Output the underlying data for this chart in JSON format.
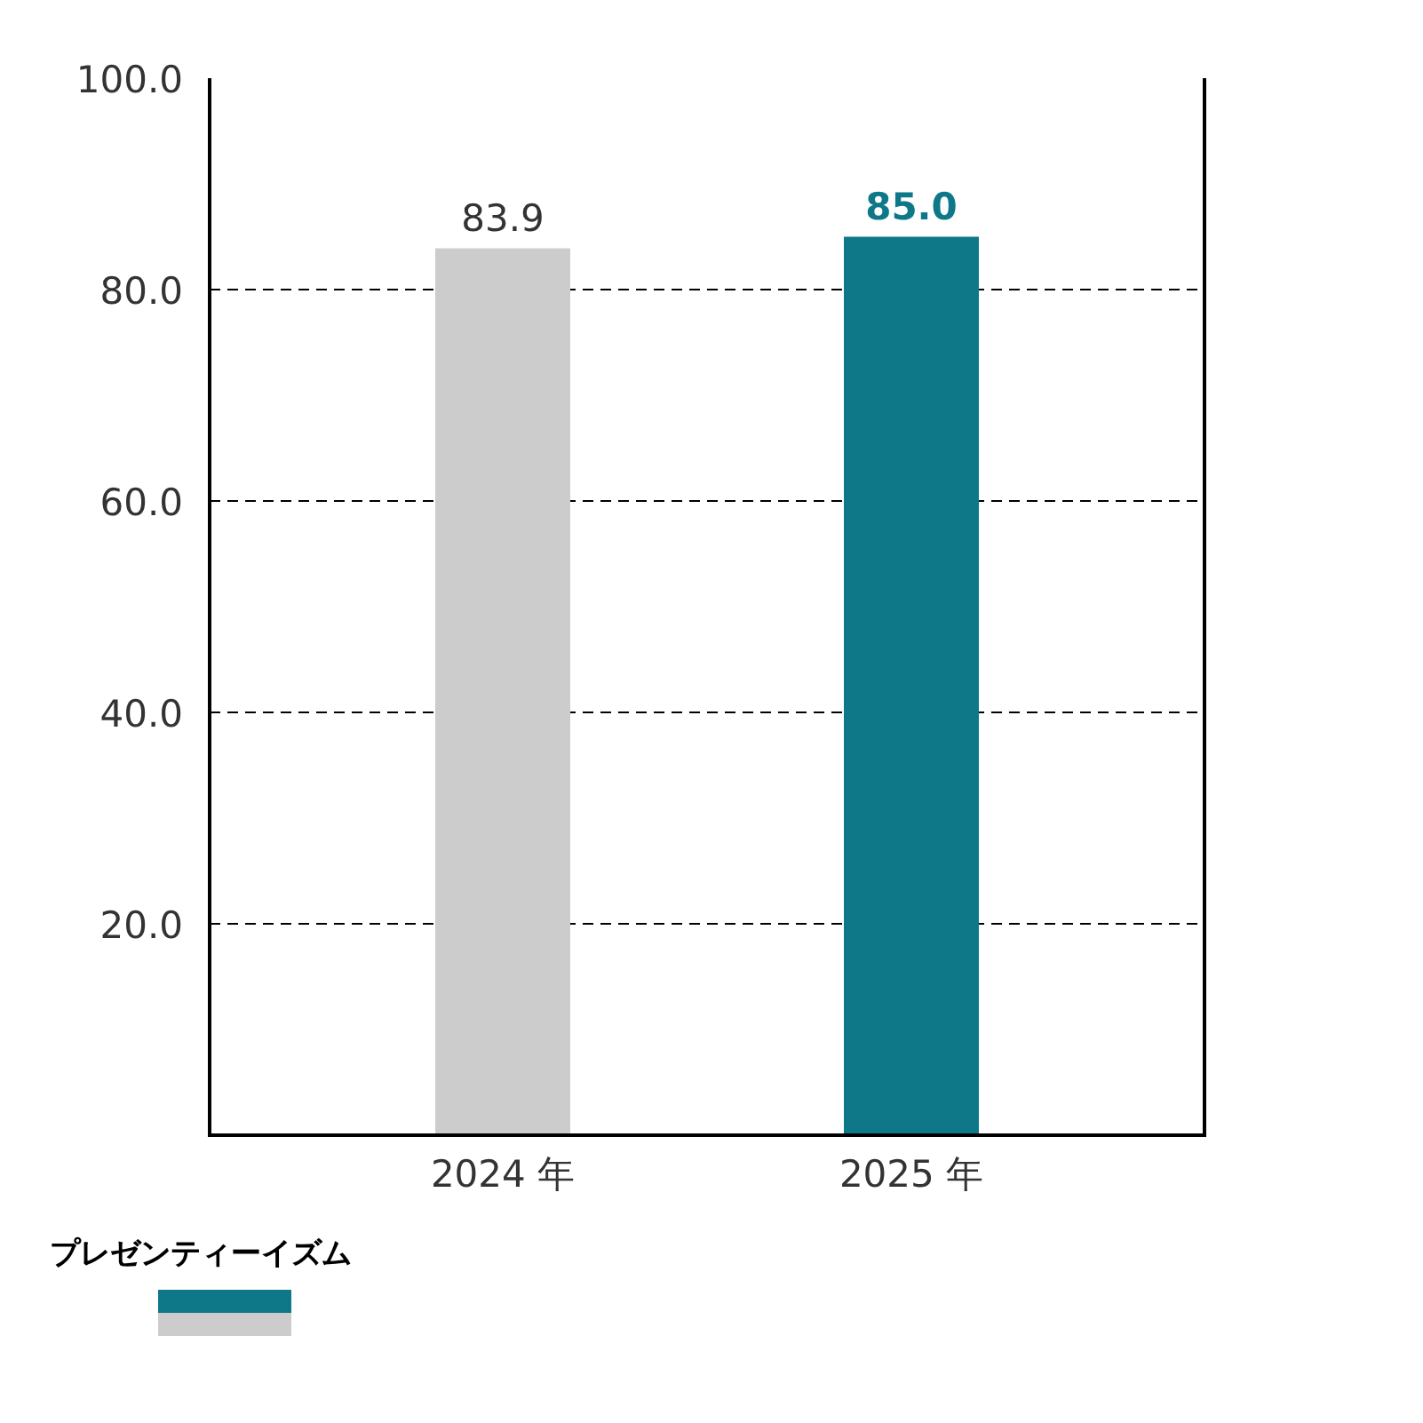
{
  "chart_data": {
    "type": "bar",
    "categories": [
      "2024 年",
      "2025 年"
    ],
    "values": [
      83.9,
      85.0
    ],
    "colors": [
      "#cccccc",
      "#0e7889"
    ],
    "value_labels": [
      "83.9",
      "85.0"
    ],
    "ylim": [
      0,
      100
    ],
    "yticks": [
      {
        "value": 20,
        "label": "20.0"
      },
      {
        "value": 40,
        "label": "40.0"
      },
      {
        "value": 60,
        "label": "60.0"
      },
      {
        "value": 80,
        "label": "80.0"
      },
      {
        "value": 100,
        "label": "100.0"
      }
    ],
    "grid": "y",
    "legend_title": "プレゼンティーイズム"
  }
}
